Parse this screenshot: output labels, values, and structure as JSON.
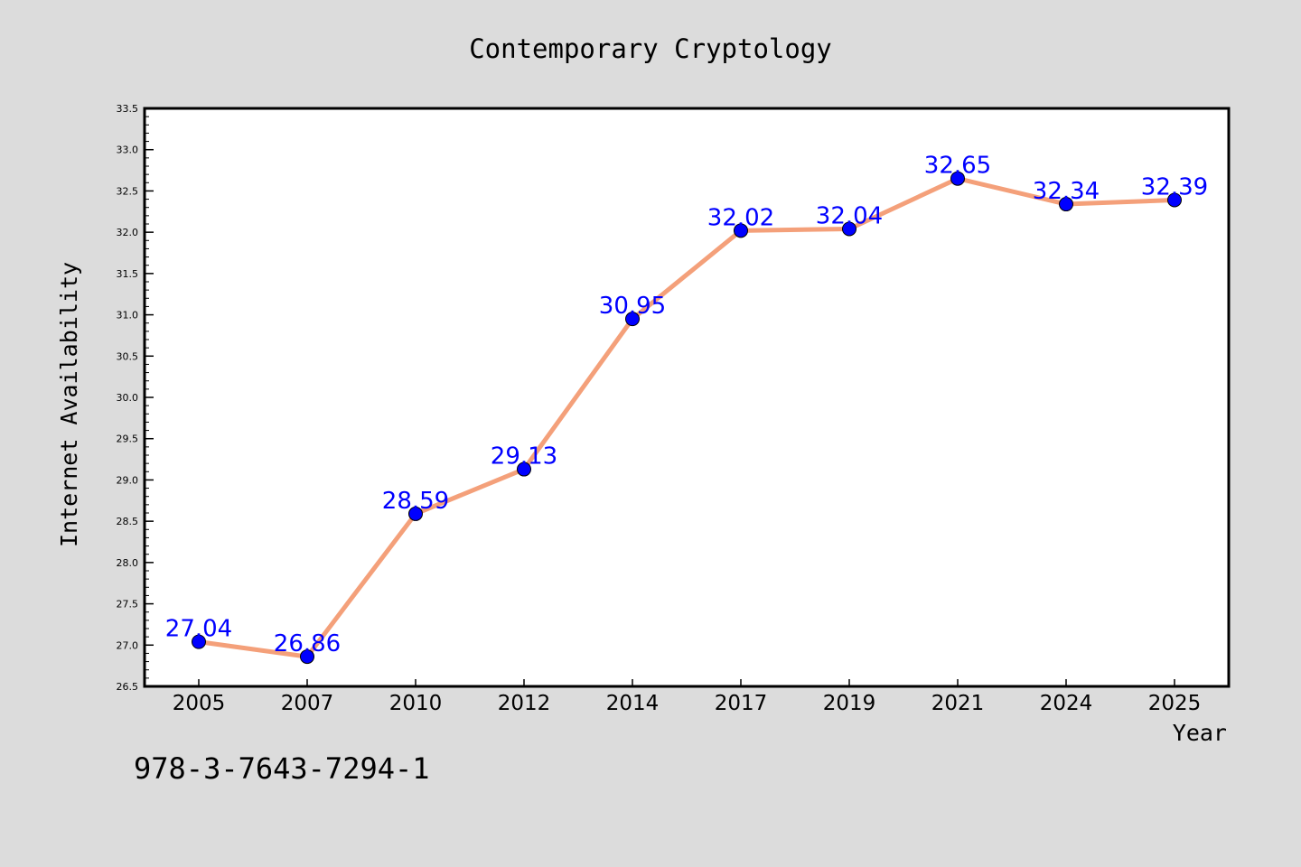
{
  "chart_data": {
    "type": "line",
    "title": "Contemporary Cryptology",
    "xlabel": "Year",
    "ylabel": "Internet Availability",
    "categories": [
      "2005",
      "2007",
      "2010",
      "2012",
      "2014",
      "2017",
      "2019",
      "2021",
      "2024",
      "2025"
    ],
    "values": [
      27.04,
      26.86,
      28.59,
      29.13,
      30.95,
      32.02,
      32.04,
      32.65,
      32.34,
      32.39
    ],
    "data_labels": [
      "27.04",
      "26.86",
      "28.59",
      "29.13",
      "30.95",
      "32.02",
      "32.04",
      "32.65",
      "32.34",
      "32.39"
    ],
    "ylim": [
      26.5,
      33.5
    ],
    "yticks": [
      26.5,
      27.0,
      27.5,
      28.0,
      28.5,
      29.0,
      29.5,
      30.0,
      30.5,
      31.0,
      31.5,
      32.0,
      32.5,
      33.0,
      33.5
    ],
    "ytick_labels": [
      "26.5",
      "27.0",
      "27.5",
      "28.0",
      "28.5",
      "29.0",
      "29.5",
      "30.0",
      "30.5",
      "31.0",
      "31.5",
      "32.0",
      "32.5",
      "33.0",
      "33.5"
    ],
    "grid": false,
    "colors": {
      "line": "#f4a07a",
      "marker": "#0000ff",
      "label": "#0000ff",
      "background": "#dcdcdc",
      "plot_area": "#ffffff"
    }
  },
  "footer": {
    "isbn": "978-3-7643-7294-1"
  }
}
